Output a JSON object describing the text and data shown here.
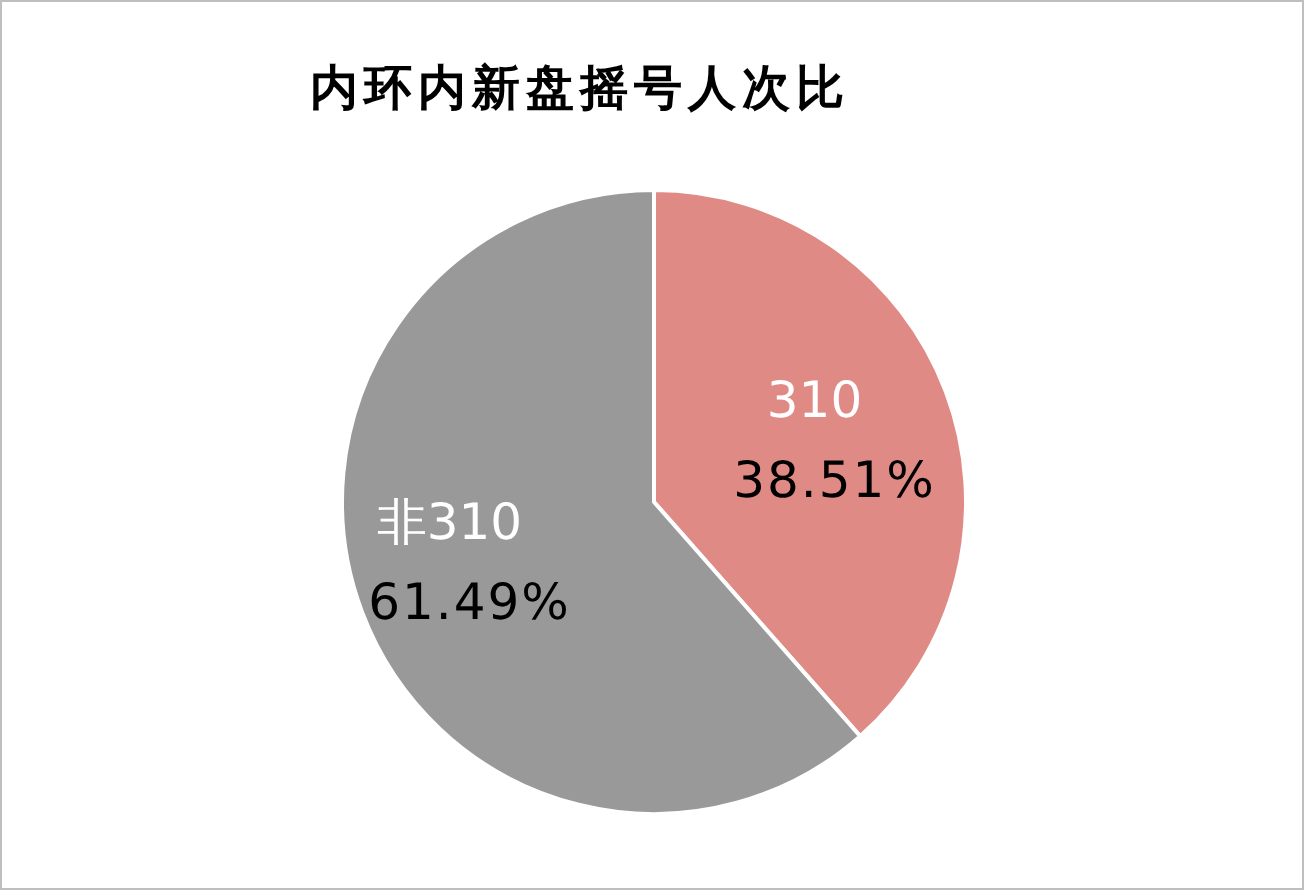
{
  "chart_data": {
    "type": "pie",
    "title": "内环内新盘摇号人次比",
    "categories": [
      "310",
      "非310"
    ],
    "values": [
      38.51,
      61.49
    ],
    "value_labels": [
      "38.51%",
      "61.49%"
    ],
    "colors": [
      "#e08a85",
      "#999999"
    ],
    "legend": false
  }
}
